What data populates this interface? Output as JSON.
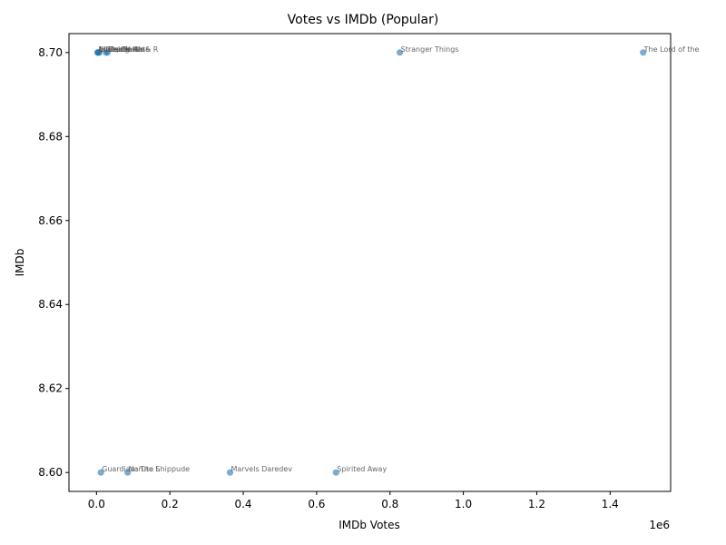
{
  "chart_data": {
    "type": "scatter",
    "title": "Votes vs IMDb (Popular)",
    "xlabel": "IMDb Votes",
    "ylabel": "IMDb",
    "x_offset_label": "1e6",
    "xlim": [
      -75000,
      1565000
    ],
    "ylim": [
      8.5955,
      8.7045
    ],
    "xticks": [
      0,
      200000,
      400000,
      600000,
      800000,
      1000000,
      1200000,
      1400000
    ],
    "xtick_labels": [
      "0.0",
      "0.2",
      "0.4",
      "0.6",
      "0.8",
      "1.0",
      "1.2",
      "1.4"
    ],
    "yticks": [
      8.6,
      8.62,
      8.64,
      8.66,
      8.68,
      8.7
    ],
    "ytick_labels": [
      "8.60",
      "8.62",
      "8.64",
      "8.66",
      "8.68",
      "8.70"
    ],
    "grid": false,
    "points": [
      {
        "label": "The Lord of the",
        "x": 1490000,
        "y": 8.7
      },
      {
        "label": "Stranger Things",
        "x": 827000,
        "y": 8.7
      },
      {
        "label": "Spirited Away",
        "x": 653000,
        "y": 8.6
      },
      {
        "label": "Marvels Daredev",
        "x": 364000,
        "y": 8.6
      },
      {
        "label": "Naruto Shippude",
        "x": 85000,
        "y": 8.6
      },
      {
        "label": "Guardian: The L",
        "x": 12000,
        "y": 8.6
      },
      {
        "label": "Death Note",
        "x": 30000,
        "y": 8.7
      },
      {
        "label": "The Seven",
        "x": 26000,
        "y": 8.7
      },
      {
        "label": "Hellsing",
        "x": 8000,
        "y": 8.7
      },
      {
        "label": "Love, Death & R",
        "x": 5000,
        "y": 8.7
      },
      {
        "label": "Ultraman Ne",
        "x": 3000,
        "y": 8.7
      },
      {
        "label": "Jujutsu K",
        "x": 4000,
        "y": 8.7
      }
    ]
  }
}
